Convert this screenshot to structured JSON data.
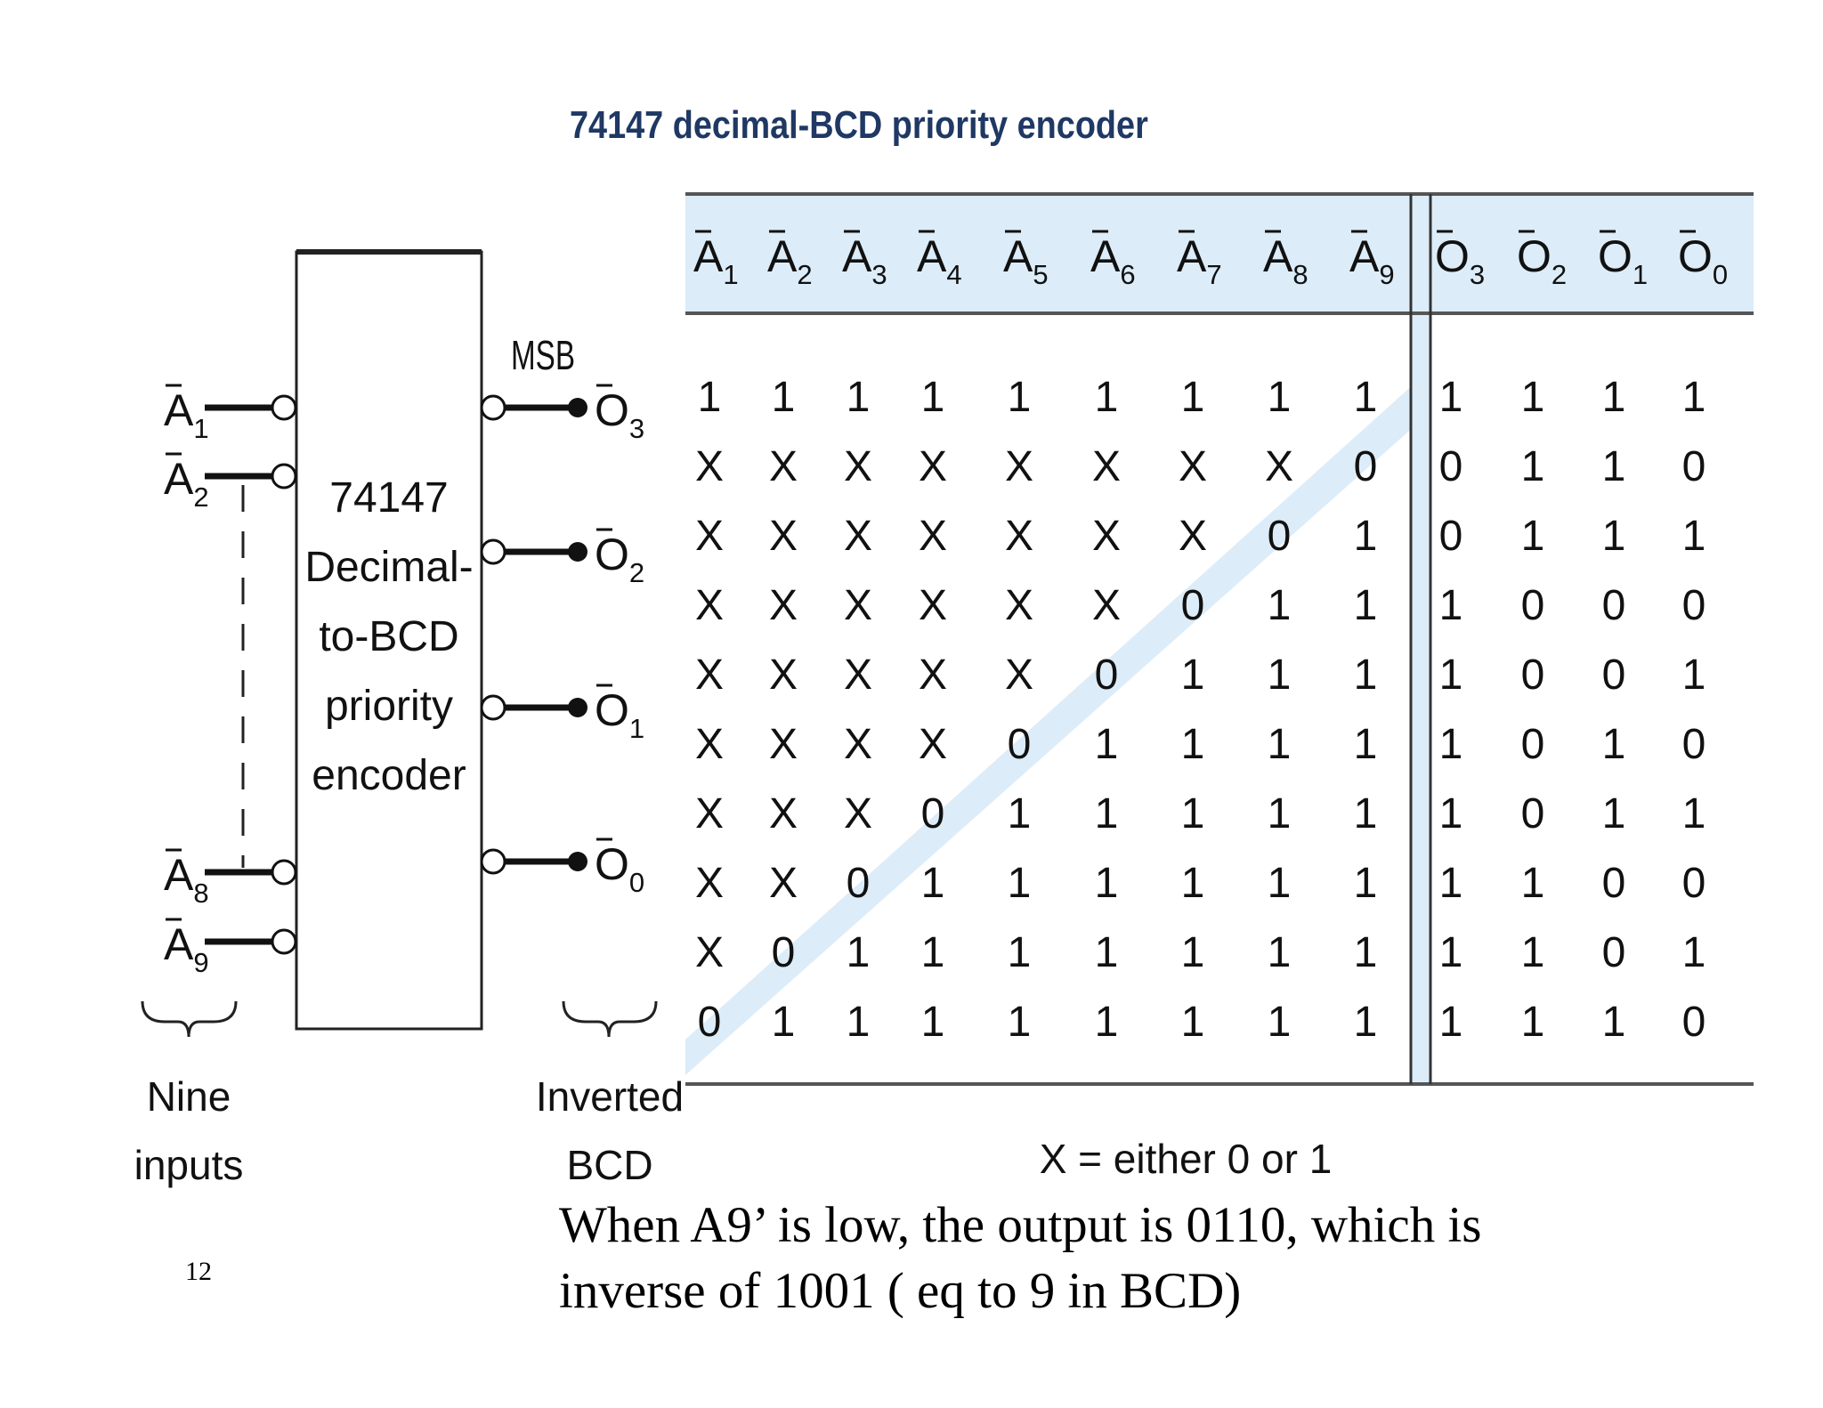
{
  "slide": {
    "title": "74147 decimal-BCD priority encoder",
    "caption_line1": "When A9’ is low, the output is 0110, which is",
    "caption_line2": "inverse of 1001 ( eq to 9 in BCD)",
    "page_number": "12"
  },
  "block_diagram": {
    "chip_lines": [
      "74147",
      "Decimal-",
      "to-BCD",
      "priority",
      "encoder"
    ],
    "input_pins": [
      {
        "base": "A",
        "sub": "1"
      },
      {
        "base": "A",
        "sub": "2"
      },
      {
        "base": "A",
        "sub": "8"
      },
      {
        "base": "A",
        "sub": "9"
      }
    ],
    "output_pins": [
      {
        "base": "O",
        "sub": "3"
      },
      {
        "base": "O",
        "sub": "2"
      },
      {
        "base": "O",
        "sub": "1"
      },
      {
        "base": "O",
        "sub": "0"
      }
    ],
    "msb_label": "MSB",
    "inputs_caption": [
      "Nine",
      "inputs"
    ],
    "outputs_caption": [
      "Inverted",
      "BCD"
    ]
  },
  "truth_table": {
    "input_headers": [
      {
        "base": "A",
        "sub": "1"
      },
      {
        "base": "A",
        "sub": "2"
      },
      {
        "base": "A",
        "sub": "3"
      },
      {
        "base": "A",
        "sub": "4"
      },
      {
        "base": "A",
        "sub": "5"
      },
      {
        "base": "A",
        "sub": "6"
      },
      {
        "base": "A",
        "sub": "7"
      },
      {
        "base": "A",
        "sub": "8"
      },
      {
        "base": "A",
        "sub": "9"
      }
    ],
    "output_headers": [
      {
        "base": "O",
        "sub": "3"
      },
      {
        "base": "O",
        "sub": "2"
      },
      {
        "base": "O",
        "sub": "1"
      },
      {
        "base": "O",
        "sub": "0"
      }
    ],
    "rows": [
      [
        [
          "1",
          "1",
          "1",
          "1",
          "1",
          "1",
          "1",
          "1",
          "1"
        ],
        [
          "1",
          "1",
          "1",
          "1"
        ]
      ],
      [
        [
          "X",
          "X",
          "X",
          "X",
          "X",
          "X",
          "X",
          "X",
          "0"
        ],
        [
          "0",
          "1",
          "1",
          "0"
        ]
      ],
      [
        [
          "X",
          "X",
          "X",
          "X",
          "X",
          "X",
          "X",
          "0",
          "1"
        ],
        [
          "0",
          "1",
          "1",
          "1"
        ]
      ],
      [
        [
          "X",
          "X",
          "X",
          "X",
          "X",
          "X",
          "0",
          "1",
          "1"
        ],
        [
          "1",
          "0",
          "0",
          "0"
        ]
      ],
      [
        [
          "X",
          "X",
          "X",
          "X",
          "X",
          "0",
          "1",
          "1",
          "1"
        ],
        [
          "1",
          "0",
          "0",
          "1"
        ]
      ],
      [
        [
          "X",
          "X",
          "X",
          "X",
          "0",
          "1",
          "1",
          "1",
          "1"
        ],
        [
          "1",
          "0",
          "1",
          "0"
        ]
      ],
      [
        [
          "X",
          "X",
          "X",
          "0",
          "1",
          "1",
          "1",
          "1",
          "1"
        ],
        [
          "1",
          "0",
          "1",
          "1"
        ]
      ],
      [
        [
          "X",
          "X",
          "0",
          "1",
          "1",
          "1",
          "1",
          "1",
          "1"
        ],
        [
          "1",
          "1",
          "0",
          "0"
        ]
      ],
      [
        [
          "X",
          "0",
          "1",
          "1",
          "1",
          "1",
          "1",
          "1",
          "1"
        ],
        [
          "1",
          "1",
          "0",
          "1"
        ]
      ],
      [
        [
          "0",
          "1",
          "1",
          "1",
          "1",
          "1",
          "1",
          "1",
          "1"
        ],
        [
          "1",
          "1",
          "1",
          "0"
        ]
      ]
    ],
    "footnote": "X = either 0 or 1"
  },
  "colors": {
    "title": "#1f3864",
    "highlight": "#dcecf8",
    "ink": "#000000"
  }
}
